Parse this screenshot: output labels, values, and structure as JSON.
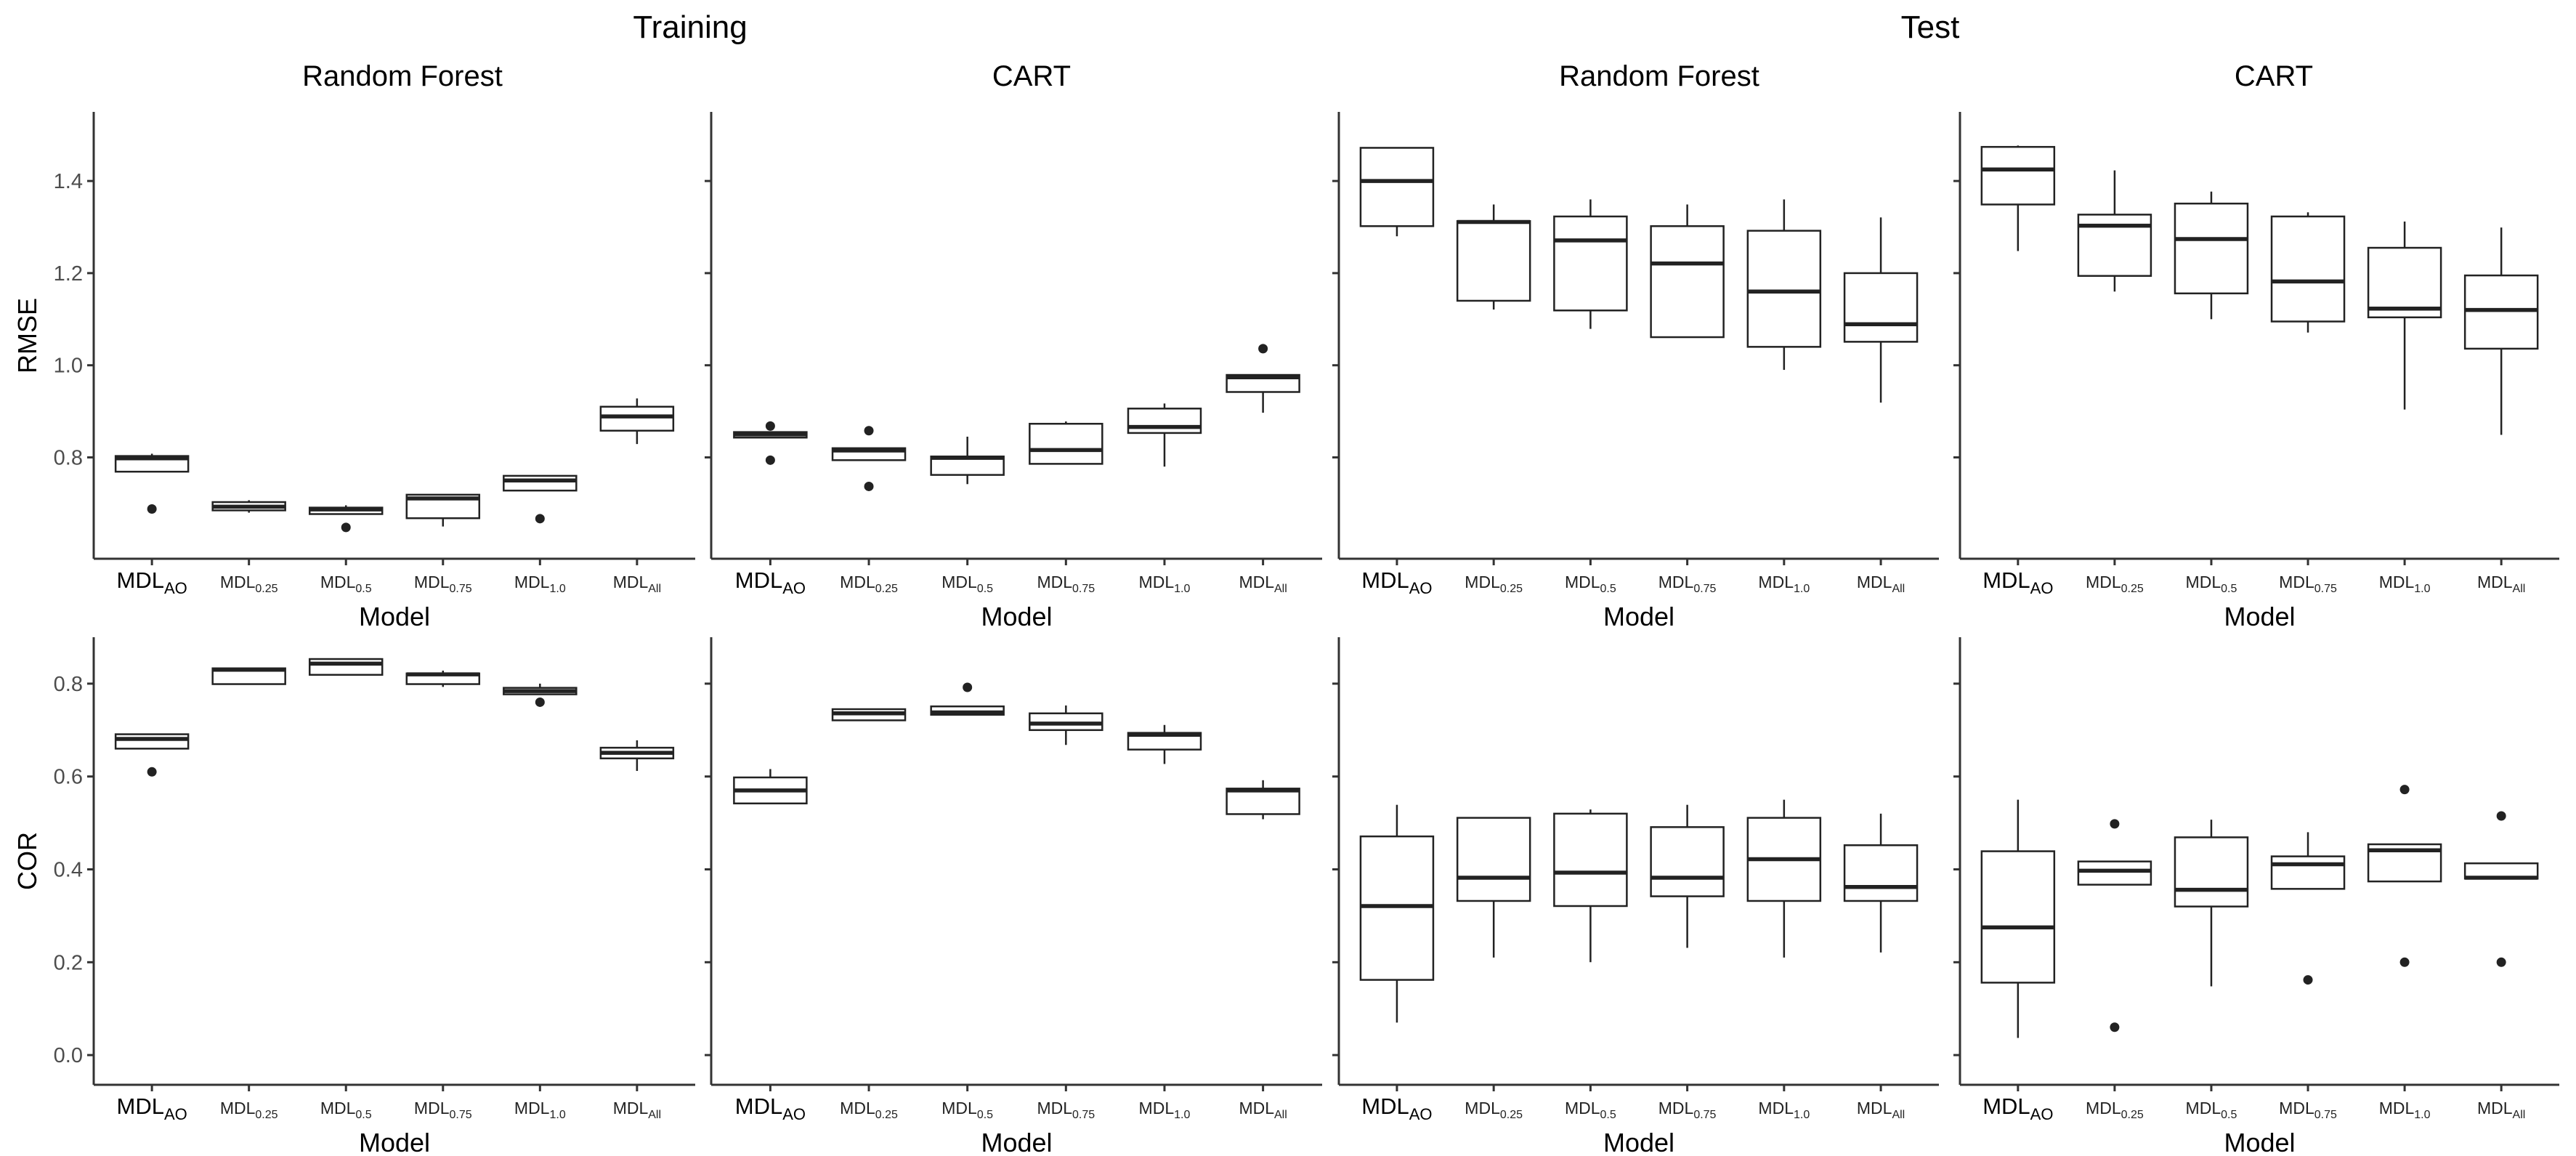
{
  "titles": {
    "training": "Training",
    "test": "Test"
  },
  "subtitles": [
    "Random Forest",
    "CART",
    "Random Forest",
    "CART"
  ],
  "xlabel": "Model",
  "rows": [
    {
      "ylabel": "RMSE",
      "ylim": [
        0.58,
        1.55
      ],
      "yticks": [
        "0.8",
        "1.0",
        "1.2",
        "1.4"
      ]
    },
    {
      "ylabel": "COR",
      "ylim": [
        -0.064,
        0.9
      ],
      "yticks": [
        "0.0",
        "0.2",
        "0.4",
        "0.6",
        "0.8"
      ]
    }
  ],
  "categories": [
    {
      "base": "MDL",
      "sub": "AO"
    },
    {
      "base": "MDL",
      "sub": "0.25"
    },
    {
      "base": "MDL",
      "sub": "0.5"
    },
    {
      "base": "MDL",
      "sub": "0.75"
    },
    {
      "base": "MDL",
      "sub": "1.0"
    },
    {
      "base": "MDL",
      "sub": "All"
    }
  ],
  "chart_data": [
    {
      "type": "box",
      "set": "Training",
      "method": "Random Forest",
      "metric": "RMSE",
      "row": 0,
      "col": 0,
      "boxes": [
        {
          "min": 0.769,
          "q1": 0.769,
          "median": 0.798,
          "q3": 0.803,
          "max": 0.808,
          "outliers": [
            0.688
          ]
        },
        {
          "min": 0.68,
          "q1": 0.685,
          "median": 0.693,
          "q3": 0.703,
          "max": 0.707,
          "outliers": []
        },
        {
          "min": 0.677,
          "q1": 0.677,
          "median": 0.687,
          "q3": 0.691,
          "max": 0.696,
          "outliers": [
            0.648
          ]
        },
        {
          "min": 0.65,
          "q1": 0.668,
          "median": 0.711,
          "q3": 0.719,
          "max": 0.719,
          "outliers": []
        },
        {
          "min": 0.728,
          "q1": 0.728,
          "median": 0.75,
          "q3": 0.76,
          "max": 0.76,
          "outliers": [
            0.667
          ]
        },
        {
          "min": 0.829,
          "q1": 0.858,
          "median": 0.889,
          "q3": 0.91,
          "max": 0.928,
          "outliers": []
        }
      ]
    },
    {
      "type": "box",
      "set": "Training",
      "method": "CART",
      "metric": "RMSE",
      "row": 0,
      "col": 1,
      "boxes": [
        {
          "min": 0.843,
          "q1": 0.843,
          "median": 0.85,
          "q3": 0.855,
          "max": 0.855,
          "outliers": [
            0.868,
            0.794
          ]
        },
        {
          "min": 0.794,
          "q1": 0.794,
          "median": 0.815,
          "q3": 0.82,
          "max": 0.82,
          "outliers": [
            0.858,
            0.737
          ]
        },
        {
          "min": 0.742,
          "q1": 0.762,
          "median": 0.799,
          "q3": 0.802,
          "max": 0.845,
          "outliers": []
        },
        {
          "min": 0.786,
          "q1": 0.786,
          "median": 0.816,
          "q3": 0.873,
          "max": 0.878,
          "outliers": []
        },
        {
          "min": 0.78,
          "q1": 0.853,
          "median": 0.866,
          "q3": 0.906,
          "max": 0.917,
          "outliers": []
        },
        {
          "min": 0.897,
          "q1": 0.942,
          "median": 0.974,
          "q3": 0.979,
          "max": 0.979,
          "outliers": [
            1.036
          ]
        }
      ]
    },
    {
      "type": "box",
      "set": "Test",
      "method": "Random Forest",
      "metric": "RMSE",
      "row": 0,
      "col": 2,
      "boxes": [
        {
          "min": 1.28,
          "q1": 1.302,
          "median": 1.4,
          "q3": 1.472,
          "max": 1.472,
          "outliers": []
        },
        {
          "min": 1.121,
          "q1": 1.14,
          "median": 1.311,
          "q3": 1.313,
          "max": 1.349,
          "outliers": []
        },
        {
          "min": 1.079,
          "q1": 1.119,
          "median": 1.271,
          "q3": 1.323,
          "max": 1.36,
          "outliers": []
        },
        {
          "min": 1.061,
          "q1": 1.061,
          "median": 1.221,
          "q3": 1.302,
          "max": 1.349,
          "outliers": []
        },
        {
          "min": 0.99,
          "q1": 1.04,
          "median": 1.16,
          "q3": 1.292,
          "max": 1.36,
          "outliers": []
        },
        {
          "min": 0.919,
          "q1": 1.051,
          "median": 1.089,
          "q3": 1.2,
          "max": 1.321,
          "outliers": []
        }
      ]
    },
    {
      "type": "box",
      "set": "Test",
      "method": "CART",
      "metric": "RMSE",
      "row": 0,
      "col": 3,
      "boxes": [
        {
          "min": 1.248,
          "q1": 1.349,
          "median": 1.425,
          "q3": 1.474,
          "max": 1.477,
          "outliers": []
        },
        {
          "min": 1.16,
          "q1": 1.194,
          "median": 1.303,
          "q3": 1.327,
          "max": 1.423,
          "outliers": []
        },
        {
          "min": 1.1,
          "q1": 1.156,
          "median": 1.274,
          "q3": 1.351,
          "max": 1.377,
          "outliers": []
        },
        {
          "min": 1.071,
          "q1": 1.095,
          "median": 1.182,
          "q3": 1.323,
          "max": 1.332,
          "outliers": []
        },
        {
          "min": 0.904,
          "q1": 1.104,
          "median": 1.123,
          "q3": 1.255,
          "max": 1.312,
          "outliers": []
        },
        {
          "min": 0.849,
          "q1": 1.036,
          "median": 1.12,
          "q3": 1.195,
          "max": 1.299,
          "outliers": []
        }
      ]
    },
    {
      "type": "box",
      "set": "Training",
      "method": "Random Forest",
      "metric": "COR",
      "row": 1,
      "col": 0,
      "boxes": [
        {
          "min": 0.66,
          "q1": 0.66,
          "median": 0.681,
          "q3": 0.691,
          "max": 0.691,
          "outliers": [
            0.61
          ]
        },
        {
          "min": 0.799,
          "q1": 0.799,
          "median": 0.83,
          "q3": 0.833,
          "max": 0.833,
          "outliers": []
        },
        {
          "min": 0.819,
          "q1": 0.819,
          "median": 0.843,
          "q3": 0.853,
          "max": 0.853,
          "outliers": []
        },
        {
          "min": 0.793,
          "q1": 0.799,
          "median": 0.82,
          "q3": 0.822,
          "max": 0.828,
          "outliers": []
        },
        {
          "min": 0.777,
          "q1": 0.777,
          "median": 0.784,
          "q3": 0.791,
          "max": 0.8,
          "outliers": [
            0.76
          ]
        },
        {
          "min": 0.612,
          "q1": 0.639,
          "median": 0.651,
          "q3": 0.662,
          "max": 0.678,
          "outliers": []
        }
      ]
    },
    {
      "type": "box",
      "set": "Training",
      "method": "CART",
      "metric": "COR",
      "row": 1,
      "col": 1,
      "boxes": [
        {
          "min": 0.542,
          "q1": 0.542,
          "median": 0.57,
          "q3": 0.598,
          "max": 0.616,
          "outliers": []
        },
        {
          "min": 0.721,
          "q1": 0.721,
          "median": 0.736,
          "q3": 0.745,
          "max": 0.745,
          "outliers": []
        },
        {
          "min": 0.733,
          "q1": 0.733,
          "median": 0.738,
          "q3": 0.751,
          "max": 0.751,
          "outliers": [
            0.792
          ]
        },
        {
          "min": 0.668,
          "q1": 0.7,
          "median": 0.714,
          "q3": 0.736,
          "max": 0.753,
          "outliers": []
        },
        {
          "min": 0.627,
          "q1": 0.658,
          "median": 0.69,
          "q3": 0.694,
          "max": 0.711,
          "outliers": []
        },
        {
          "min": 0.508,
          "q1": 0.519,
          "median": 0.57,
          "q3": 0.574,
          "max": 0.592,
          "outliers": []
        }
      ]
    },
    {
      "type": "box",
      "set": "Test",
      "method": "Random Forest",
      "metric": "COR",
      "row": 1,
      "col": 2,
      "boxes": [
        {
          "min": 0.07,
          "q1": 0.162,
          "median": 0.321,
          "q3": 0.471,
          "max": 0.539,
          "outliers": []
        },
        {
          "min": 0.21,
          "q1": 0.332,
          "median": 0.382,
          "q3": 0.511,
          "max": 0.511,
          "outliers": []
        },
        {
          "min": 0.2,
          "q1": 0.321,
          "median": 0.393,
          "q3": 0.52,
          "max": 0.529,
          "outliers": []
        },
        {
          "min": 0.231,
          "q1": 0.342,
          "median": 0.382,
          "q3": 0.491,
          "max": 0.539,
          "outliers": []
        },
        {
          "min": 0.21,
          "q1": 0.332,
          "median": 0.422,
          "q3": 0.511,
          "max": 0.55,
          "outliers": []
        },
        {
          "min": 0.221,
          "q1": 0.332,
          "median": 0.362,
          "q3": 0.452,
          "max": 0.52,
          "outliers": []
        }
      ]
    },
    {
      "type": "box",
      "set": "Test",
      "method": "CART",
      "metric": "COR",
      "row": 1,
      "col": 3,
      "boxes": [
        {
          "min": 0.037,
          "q1": 0.156,
          "median": 0.275,
          "q3": 0.439,
          "max": 0.55,
          "outliers": []
        },
        {
          "min": 0.367,
          "q1": 0.367,
          "median": 0.397,
          "q3": 0.417,
          "max": 0.417,
          "outliers": [
            0.498,
            0.06
          ]
        },
        {
          "min": 0.148,
          "q1": 0.32,
          "median": 0.356,
          "q3": 0.469,
          "max": 0.507,
          "outliers": []
        },
        {
          "min": 0.358,
          "q1": 0.358,
          "median": 0.411,
          "q3": 0.428,
          "max": 0.48,
          "outliers": [
            0.162
          ]
        },
        {
          "min": 0.374,
          "q1": 0.374,
          "median": 0.441,
          "q3": 0.454,
          "max": 0.454,
          "outliers": [
            0.572,
            0.2
          ]
        },
        {
          "min": 0.38,
          "q1": 0.38,
          "median": 0.382,
          "q3": 0.413,
          "max": 0.413,
          "outliers": [
            0.515,
            0.2
          ]
        }
      ]
    }
  ]
}
